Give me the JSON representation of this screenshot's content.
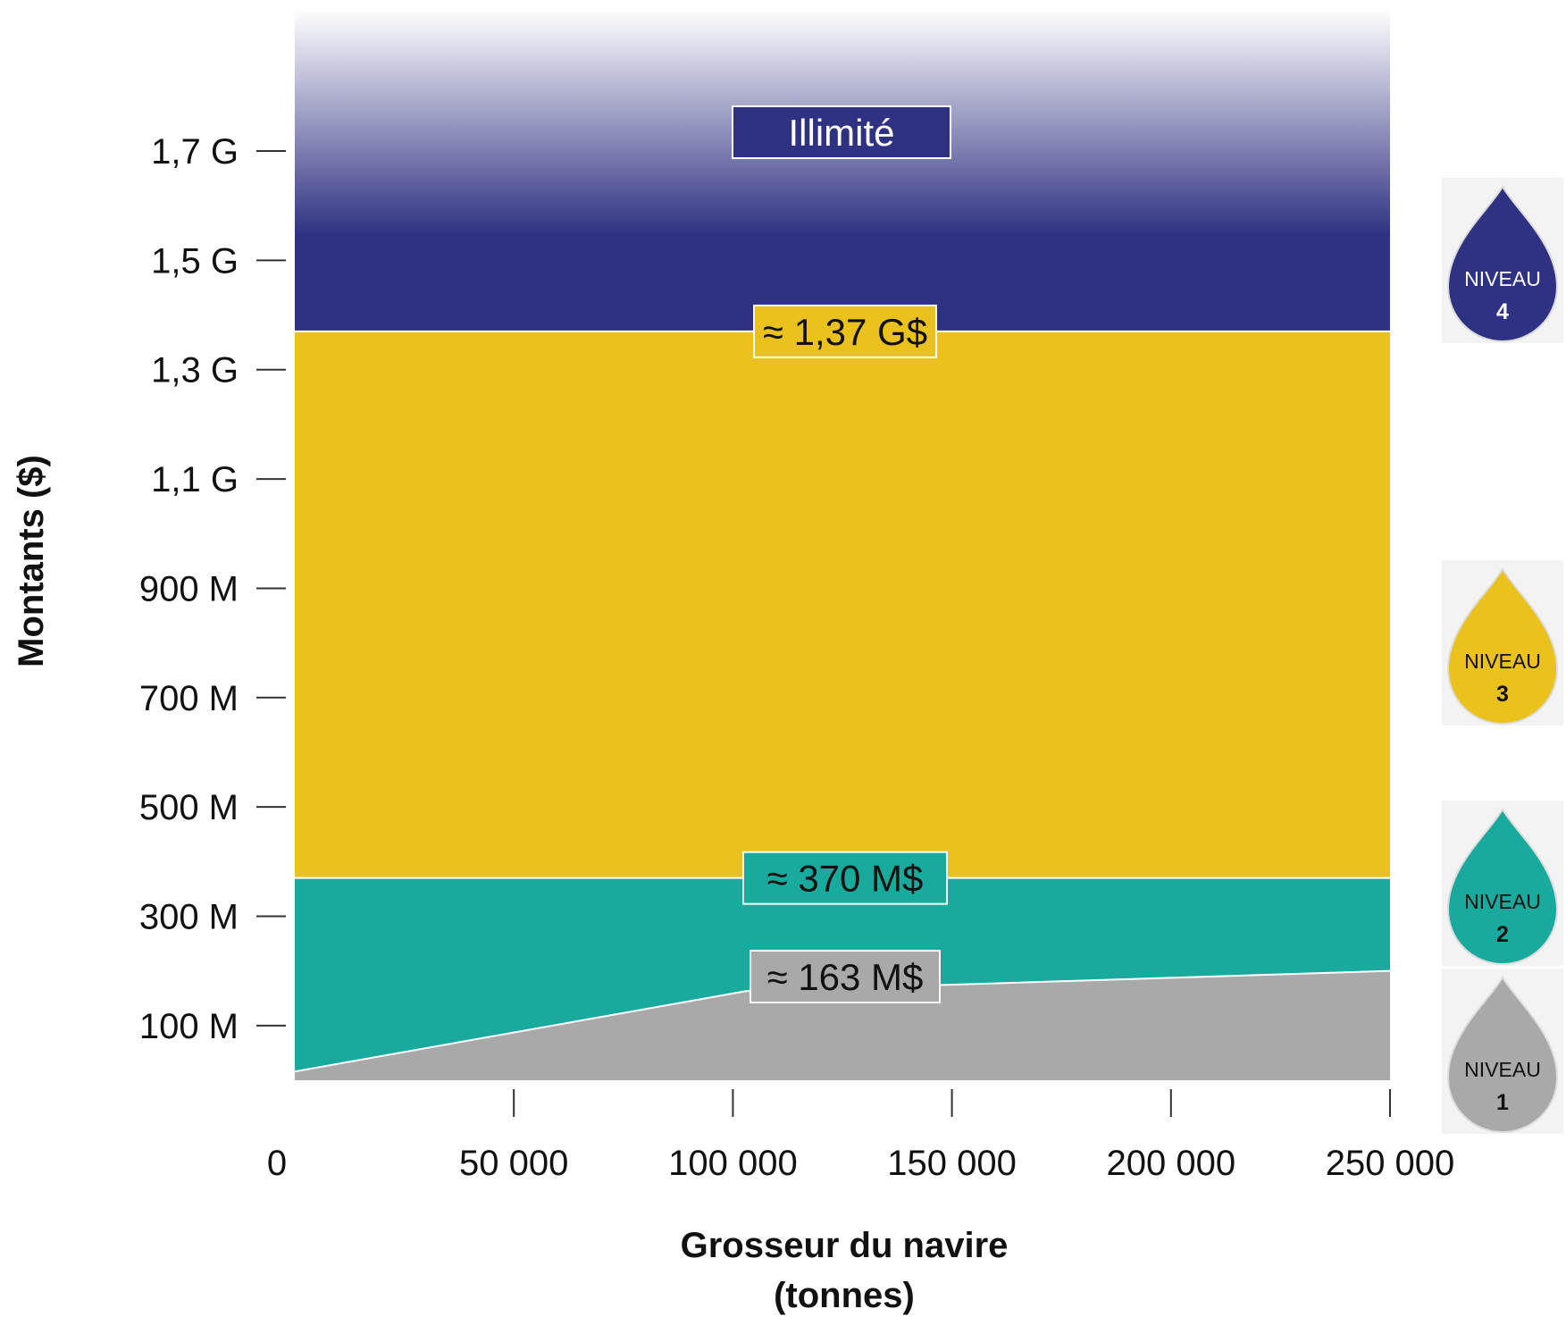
{
  "chart_data": {
    "type": "area",
    "xlabel_line1": "Grosseur du navire",
    "xlabel_line2": "(tonnes)",
    "ylabel": "Montants ($)",
    "xlim": [
      0,
      250000
    ],
    "ylim": [
      0,
      1960
    ],
    "x_ticks": [
      {
        "value": 0,
        "label": "0"
      },
      {
        "value": 50000,
        "label": "50 000"
      },
      {
        "value": 100000,
        "label": "100 000"
      },
      {
        "value": 150000,
        "label": "150 000"
      },
      {
        "value": 200000,
        "label": "200 000"
      },
      {
        "value": 250000,
        "label": "250 000"
      }
    ],
    "y_ticks": [
      {
        "value": 100,
        "label": "100 M"
      },
      {
        "value": 300,
        "label": "300 M"
      },
      {
        "value": 500,
        "label": "500 M"
      },
      {
        "value": 700,
        "label": "700 M"
      },
      {
        "value": 900,
        "label": "900 M"
      },
      {
        "value": 1100,
        "label": "1,1 G"
      },
      {
        "value": 1300,
        "label": "1,3 G"
      },
      {
        "value": 1500,
        "label": "1,5 G"
      },
      {
        "value": 1700,
        "label": "1,7 G"
      }
    ],
    "tier1_curve": [
      {
        "x": 0,
        "y": 16
      },
      {
        "x": 103000,
        "y": 163
      },
      {
        "x": 250000,
        "y": 200
      }
    ],
    "tier2_top": 370,
    "tier3_top": 1370,
    "labels": {
      "tier1": "≈ 163 M$",
      "tier2": "≈ 370 M$",
      "tier3": "≈ 1,37 G$",
      "tier4": "Illimité"
    },
    "levels": [
      {
        "word": "NIVEAU",
        "number": "4",
        "color": "#2f3282"
      },
      {
        "word": "NIVEAU",
        "number": "3",
        "color": "#ebc11b"
      },
      {
        "word": "NIVEAU",
        "number": "2",
        "color": "#18aa9d"
      },
      {
        "word": "NIVEAU",
        "number": "1",
        "color": "#a9a9a9"
      }
    ],
    "colors": {
      "tier1": "#a9a9a9",
      "tier2": "#18aa9d",
      "tier3": "#ebc11b",
      "tier4": "#2f3282"
    }
  }
}
